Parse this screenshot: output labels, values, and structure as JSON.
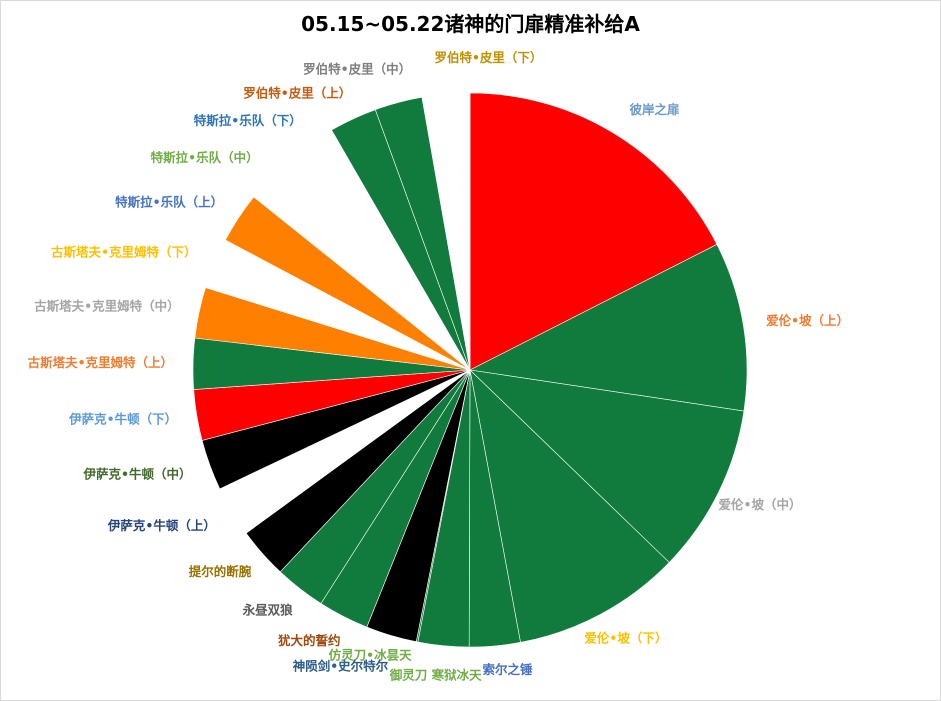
{
  "chart_data": {
    "type": "pie",
    "title": "05.15~05.22诸神的门扉精准补给A",
    "start_angle_deg": 0,
    "direction": "clockwise",
    "slices": [
      {
        "label": "彼岸之扉",
        "value": 18.3,
        "color": "#ff0000",
        "label_color": "#6a9ac9"
      },
      {
        "label": "爱伦•坡（上）",
        "value": 10.3,
        "color": "#107b3c",
        "label_color": "#ed7d31"
      },
      {
        "label": "爱伦•坡（中）",
        "value": 10.3,
        "color": "#107b3c",
        "label_color": "#a5a5a5"
      },
      {
        "label": "爱伦•坡（下）",
        "value": 10.3,
        "color": "#107b3c",
        "label_color": "#ffc000"
      },
      {
        "label": "索尔之锤",
        "value": 3.1,
        "color": "#107b3c",
        "label_color": "#4472c4"
      },
      {
        "label": "御灵刀 寒狱冰天",
        "value": 3.1,
        "color": "#107b3c",
        "label_color": "#70ad47"
      },
      {
        "label": "仿灵刀•冰昙天",
        "value": 0.1,
        "color": "#107b3c",
        "label_color": "#70ad47"
      },
      {
        "label": "神陨剑•史尔特尔",
        "value": 3.1,
        "color": "#000000",
        "label_color": "#2e5c8a"
      },
      {
        "label": "犹大的誓约",
        "value": 3.1,
        "color": "#107b3c",
        "label_color": "#9e480e"
      },
      {
        "label": "永昼双狼",
        "value": 3.1,
        "color": "#107b3c",
        "label_color": "#595959"
      },
      {
        "label": "提尔的断腕",
        "value": 3.1,
        "color": "#000000",
        "label_color": "#997300"
      },
      {
        "label": "伊萨克•牛顿（上）",
        "value": 3.1,
        "color": "#ffffff",
        "label_color": "#264478"
      },
      {
        "label": "伊萨克•牛顿（中）",
        "value": 3.1,
        "color": "#000000",
        "label_color": "#43682b"
      },
      {
        "label": "伊萨克•牛顿（下）",
        "value": 3.1,
        "color": "#ff0000",
        "label_color": "#5b9bd5"
      },
      {
        "label": "古斯塔夫•克里姆特（上）",
        "value": 3.1,
        "color": "#107b3c",
        "label_color": "#ed7d31"
      },
      {
        "label": "古斯塔夫•克里姆特（中）",
        "value": 3.1,
        "color": "#ff7f00",
        "label_color": "#a5a5a5"
      },
      {
        "label": "古斯塔夫•克里姆特（下）",
        "value": 3.1,
        "color": "#ffffff",
        "label_color": "#ffc000"
      },
      {
        "label": "特斯拉•乐队（上）",
        "value": 3.1,
        "color": "#ff7f00",
        "label_color": "#4472c4"
      },
      {
        "label": "特斯拉•乐队（中）",
        "value": 3.1,
        "color": "#ffffff",
        "label_color": "#70ad47"
      },
      {
        "label": "特斯拉•乐队（下）",
        "value": 3.1,
        "color": "#ffffff",
        "label_color": "#2e75b6"
      },
      {
        "label": "罗伯特•皮里（上）",
        "value": 2.9,
        "color": "#107b3c",
        "label_color": "#c55a11"
      },
      {
        "label": "罗伯特•皮里（中）",
        "value": 2.9,
        "color": "#107b3c",
        "label_color": "#7f7f7f"
      },
      {
        "label": "罗伯特•皮里（下）",
        "value": 2.9,
        "color": "#ffffff",
        "label_color": "#bf9000"
      }
    ]
  }
}
